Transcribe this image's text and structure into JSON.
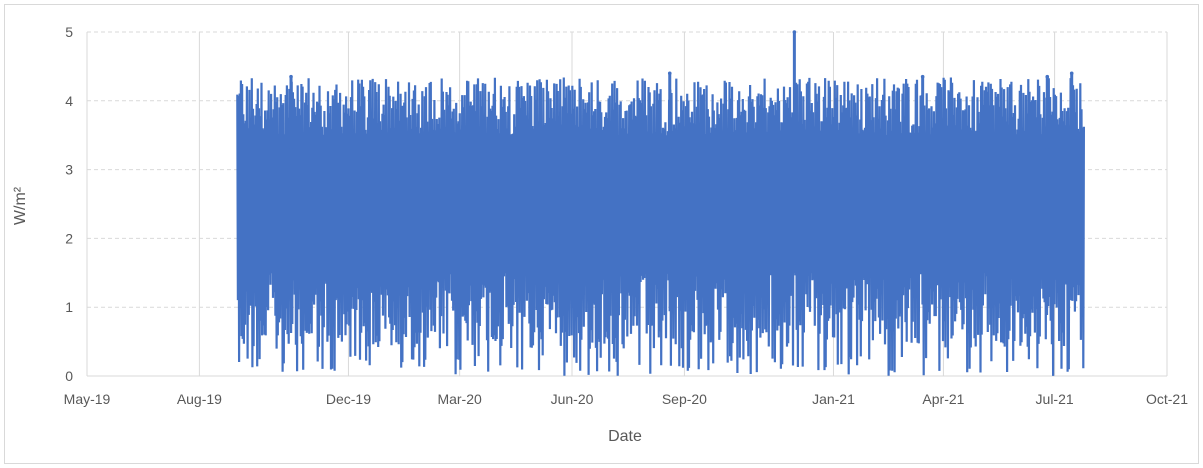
{
  "chart_data": {
    "type": "scatter",
    "title": "",
    "xlabel": "Date",
    "ylabel": "W/m²",
    "x_tick_labels": [
      "May-19",
      "Aug-19",
      "Dec-19",
      "Mar-20",
      "Jun-20",
      "Sep-20",
      "Jan-21",
      "Apr-21",
      "Jul-21",
      "Oct-21"
    ],
    "x_ticks": [
      "2019-05-01",
      "2019-08-01",
      "2019-12-01",
      "2020-03-01",
      "2020-06-01",
      "2020-09-01",
      "2021-01-01",
      "2021-04-01",
      "2021-07-01",
      "2021-10-01"
    ],
    "xlim": [
      "2019-05-01",
      "2021-10-01"
    ],
    "y_tick_labels": [
      "0",
      "1",
      "2",
      "3",
      "4",
      "5"
    ],
    "ylim": [
      0,
      5
    ],
    "grid": true,
    "legend": "none",
    "series": [
      {
        "color": "#4472c4",
        "x_range": [
          "2019-09-01",
          "2021-07-25"
        ],
        "values_summary": {
          "min": 0.0,
          "max": 5.0,
          "typical_low": 1.5,
          "typical_high": 3.5
        },
        "notable_points": [
          {
            "x": "2020-11-30",
            "y": 5.0
          },
          {
            "x": "2019-10-15",
            "y": 4.35
          },
          {
            "x": "2020-08-20",
            "y": 4.4
          },
          {
            "x": "2021-03-15",
            "y": 4.35
          },
          {
            "x": "2021-06-25",
            "y": 4.35
          },
          {
            "x": "2021-07-15",
            "y": 4.4
          }
        ]
      }
    ]
  }
}
